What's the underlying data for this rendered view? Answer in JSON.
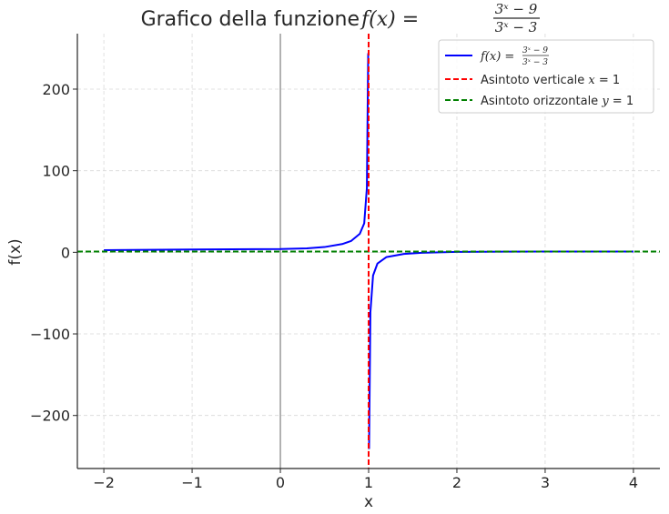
{
  "chart_data": {
    "type": "line",
    "title": {
      "prefix": "Grafico della funzione ",
      "lhs": "f(x) = ",
      "numerator": "3ˣ − 9",
      "denominator": "3ˣ − 3"
    },
    "xlabel": "x",
    "ylabel": "f(x)",
    "xlim": [
      -2.3,
      4.3
    ],
    "ylim": [
      -265,
      268
    ],
    "xticks": [
      -2,
      -1,
      0,
      1,
      2,
      3,
      4
    ],
    "xtick_labels": [
      "−2",
      "−1",
      "0",
      "1",
      "2",
      "3",
      "4"
    ],
    "yticks": [
      -200,
      -100,
      0,
      100,
      200
    ],
    "ytick_labels": [
      "−200",
      "−100",
      "0",
      "100",
      "200"
    ],
    "grid": true,
    "legend_position": "top-right",
    "function_domain": [
      -2,
      4
    ],
    "series": [
      {
        "name": "f(x) = (3ˣ − 9)/(3ˣ − 3)",
        "legend": {
          "lhs": "f(x) = ",
          "numerator": "3ˣ − 9",
          "denominator": "3ˣ − 3"
        },
        "color": "#0000ff",
        "style": "solid",
        "points_left": [
          [
            -2,
            2.62
          ],
          [
            -1,
            3.5
          ],
          [
            0,
            4.0
          ],
          [
            0.3,
            4.9
          ],
          [
            0.5,
            6.46
          ],
          [
            0.7,
            10.1
          ],
          [
            0.8,
            13.8
          ],
          [
            0.9,
            22.7
          ],
          [
            0.95,
            35.5
          ],
          [
            0.98,
            78.8
          ],
          [
            0.995,
            244
          ]
        ],
        "points_right": [
          [
            1.005,
            -241
          ],
          [
            1.02,
            -73.5
          ],
          [
            1.05,
            -28.5
          ],
          [
            1.1,
            -13.7
          ],
          [
            1.2,
            -5.9
          ],
          [
            1.4,
            -2.0
          ],
          [
            1.6,
            -0.64
          ],
          [
            2.0,
            0.5
          ],
          [
            2.5,
            0.86
          ],
          [
            3.0,
            0.95
          ],
          [
            4.0,
            0.99
          ]
        ]
      },
      {
        "name": "Asintoto verticale x = 1",
        "legend": {
          "text": "Asintoto verticale ",
          "math": "x",
          "rest": " = 1"
        },
        "color": "#ff0000",
        "style": "dashed",
        "x_value": 1
      },
      {
        "name": "Asintoto orizzontale y = 1",
        "legend": {
          "text": "Asintoto orizzontale ",
          "math": "y",
          "rest": " = 1"
        },
        "color": "#008000",
        "style": "dashed",
        "y_value": 1
      }
    ],
    "reference_lines": [
      {
        "axis": "x",
        "value": 0,
        "color": "#808080"
      }
    ]
  }
}
